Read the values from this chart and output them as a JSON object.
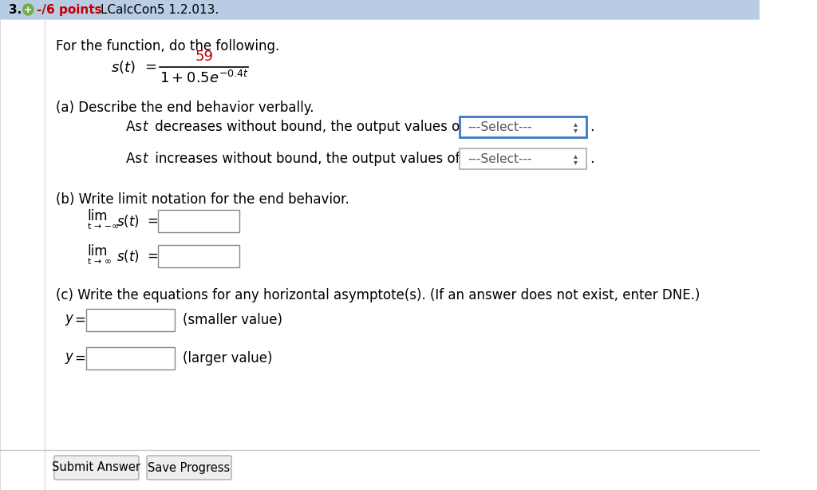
{
  "bg_color": "#ffffff",
  "header_bg": "#b8cce4",
  "header_text_color": "#000000",
  "header_number": "3.",
  "header_points": "-/6 points",
  "header_points_color": "#c00000",
  "header_label": "LCalcCon5 1.2.013.",
  "intro_text": "For the function, do the following.",
  "formula_numerator_color": "#c00000",
  "part_a_label": "(a) Describe the end behavior verbally.",
  "select_text": "---Select---",
  "select_box_color": "#3b78c8",
  "select_box_fill": "#ffffff",
  "part_b_label": "(b) Write limit notation for the end behavior.",
  "lim1_sub": "t → −∞",
  "lim2_sub": "t → ∞",
  "part_c_label": "(c) Write the equations for any horizontal asymptote(s). (If an answer does not exist, enter DNE.)",
  "y_smaller_label": "(smaller value)",
  "y_larger_label": "(larger value)",
  "btn1_text": "Submit Answer",
  "btn2_text": "Save Progress"
}
